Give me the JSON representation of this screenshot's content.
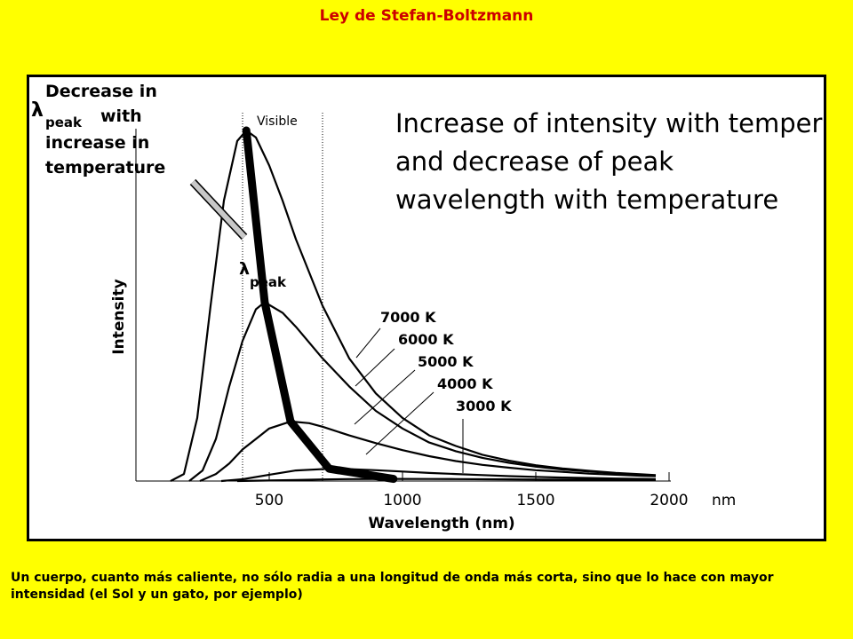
{
  "slide": {
    "title": "Ley de Stefan-Boltzmann",
    "caption": "Un cuerpo, cuanto más caliente, no sólo radia a una longitud de onda más corta, sino que lo hace con mayor intensidad (el Sol y un gato, por ejemplo)",
    "colors": {
      "background": "#ffff00",
      "title": "#cc0000",
      "frame": "#000000",
      "curves": "#000000"
    }
  },
  "chart_data": {
    "type": "line",
    "title": "Increase of intensity with temperature and decrease of peak wavelength with temperature",
    "xlabel": "Wavelength (nm)",
    "ylabel": "Intensity",
    "x_unit": "nm",
    "x_ticks": [
      500,
      1000,
      1500,
      2000
    ],
    "xlim": [
      0,
      2000
    ],
    "ylim": [
      0,
      1
    ],
    "grid": false,
    "visible_band_label": "Visible",
    "visible_band": [
      400,
      700
    ],
    "peak_annotation": {
      "label": "Decrease in λpeak with increase in temperature",
      "lines": [
        "Decrease in",
        "λ",
        "peak",
        "with",
        "increase in",
        "temperature"
      ]
    },
    "peak_curve_label": {
      "lambda": "λ",
      "sub": "peak"
    },
    "peak_locus": [
      [
        414,
        1.0
      ],
      [
        483,
        0.51
      ],
      [
        580,
        0.17
      ],
      [
        725,
        0.035
      ],
      [
        966,
        0.006
      ]
    ],
    "series": [
      {
        "name": "7000 K",
        "temperature_k": 7000,
        "peak_nm": 414,
        "x": [
          130,
          180,
          230,
          280,
          330,
          380,
          414,
          450,
          500,
          550,
          600,
          700,
          800,
          900,
          1000,
          1100,
          1200,
          1300,
          1400,
          1500,
          1600,
          1700,
          1800,
          1900,
          1950
        ],
        "y": [
          0.0,
          0.02,
          0.18,
          0.5,
          0.8,
          0.97,
          1.0,
          0.98,
          0.9,
          0.8,
          0.69,
          0.5,
          0.35,
          0.25,
          0.18,
          0.13,
          0.1,
          0.075,
          0.058,
          0.045,
          0.036,
          0.029,
          0.023,
          0.019,
          0.017
        ]
      },
      {
        "name": "6000 K",
        "temperature_k": 6000,
        "peak_nm": 483,
        "x": [
          200,
          250,
          300,
          350,
          400,
          450,
          483,
          550,
          600,
          700,
          800,
          900,
          1000,
          1100,
          1200,
          1300,
          1400,
          1500,
          1600,
          1700,
          1800,
          1900,
          1950
        ],
        "y": [
          0.0,
          0.03,
          0.12,
          0.27,
          0.4,
          0.49,
          0.51,
          0.48,
          0.44,
          0.35,
          0.27,
          0.2,
          0.15,
          0.11,
          0.085,
          0.066,
          0.052,
          0.041,
          0.033,
          0.027,
          0.022,
          0.018,
          0.016
        ]
      },
      {
        "name": "5000 K",
        "temperature_k": 5000,
        "peak_nm": 580,
        "x": [
          240,
          300,
          350,
          400,
          450,
          500,
          580,
          650,
          700,
          800,
          900,
          1000,
          1100,
          1200,
          1300,
          1400,
          1500,
          1600,
          1700,
          1800,
          1900,
          1950
        ],
        "y": [
          0.0,
          0.02,
          0.05,
          0.09,
          0.12,
          0.15,
          0.17,
          0.165,
          0.155,
          0.13,
          0.108,
          0.088,
          0.071,
          0.057,
          0.046,
          0.038,
          0.031,
          0.026,
          0.021,
          0.018,
          0.015,
          0.014
        ]
      },
      {
        "name": "4000 K",
        "temperature_k": 4000,
        "peak_nm": 725,
        "x": [
          320,
          400,
          500,
          600,
          725,
          800,
          900,
          1000,
          1100,
          1200,
          1300,
          1400,
          1500,
          1600,
          1700,
          1800,
          1900,
          1950
        ],
        "y": [
          0.0,
          0.005,
          0.018,
          0.03,
          0.035,
          0.034,
          0.031,
          0.027,
          0.023,
          0.02,
          0.017,
          0.014,
          0.012,
          0.01,
          0.0085,
          0.007,
          0.006,
          0.0055
        ]
      },
      {
        "name": "3000 K",
        "temperature_k": 3000,
        "peak_nm": 966,
        "x": [
          380,
          500,
          600,
          700,
          800,
          966,
          1100,
          1200,
          1400,
          1600,
          1800,
          1950
        ],
        "y": [
          0.0,
          0.0015,
          0.003,
          0.0045,
          0.0055,
          0.006,
          0.0058,
          0.0055,
          0.0047,
          0.0039,
          0.0032,
          0.0028
        ]
      }
    ]
  }
}
